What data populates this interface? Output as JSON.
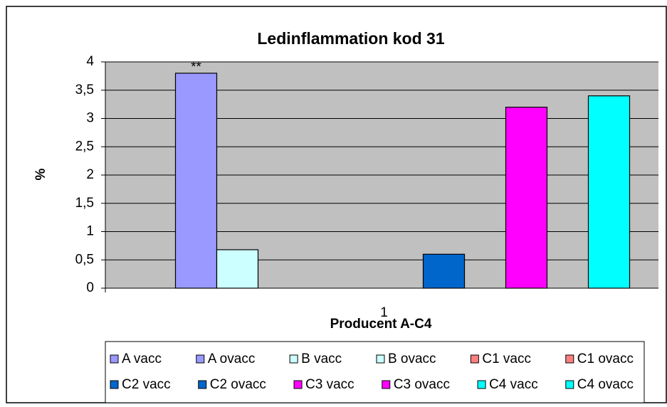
{
  "chart_data": {
    "type": "bar",
    "title": "Ledinflammation kod 31",
    "x_label": "Producent A-C4",
    "y_label": "%",
    "categories": [
      "1"
    ],
    "series": [
      {
        "name": "A vacc",
        "color": "#9999FF",
        "values": [
          0
        ]
      },
      {
        "name": "A ovacc",
        "color": "#9999FF",
        "values": [
          3.8
        ]
      },
      {
        "name": "B vacc",
        "color": "#CCFFFF",
        "values": [
          0.68
        ]
      },
      {
        "name": "B ovacc",
        "color": "#CCFFFF",
        "values": [
          0
        ]
      },
      {
        "name": "C1 vacc",
        "color": "#FF8080",
        "values": [
          0
        ]
      },
      {
        "name": "C1 ovacc",
        "color": "#FF8080",
        "values": [
          0
        ]
      },
      {
        "name": "C2 vacc",
        "color": "#0066CC",
        "values": [
          0
        ]
      },
      {
        "name": "C2 ovacc",
        "color": "#0066CC",
        "values": [
          0.6
        ]
      },
      {
        "name": "C3 vacc",
        "color": "#FF00FF",
        "values": [
          0
        ]
      },
      {
        "name": "C3 ovacc",
        "color": "#FF00FF",
        "values": [
          3.2
        ]
      },
      {
        "name": "C4 vacc",
        "color": "#00FFFF",
        "values": [
          0
        ]
      },
      {
        "name": "C4 ovacc",
        "color": "#00FFFF",
        "values": [
          3.4
        ]
      }
    ],
    "annotations": [
      {
        "text": "**",
        "series": 1
      }
    ],
    "ylim": [
      0,
      4
    ],
    "yticks": [
      0,
      {
        "value": 0.5,
        "label": "0,5"
      },
      1,
      {
        "value": 1.5,
        "label": "1,5"
      },
      2,
      {
        "value": 2.5,
        "label": "2,5"
      },
      3,
      {
        "value": 3.5,
        "label": "3,5"
      },
      4
    ],
    "grid": true,
    "legend": "bottom"
  }
}
